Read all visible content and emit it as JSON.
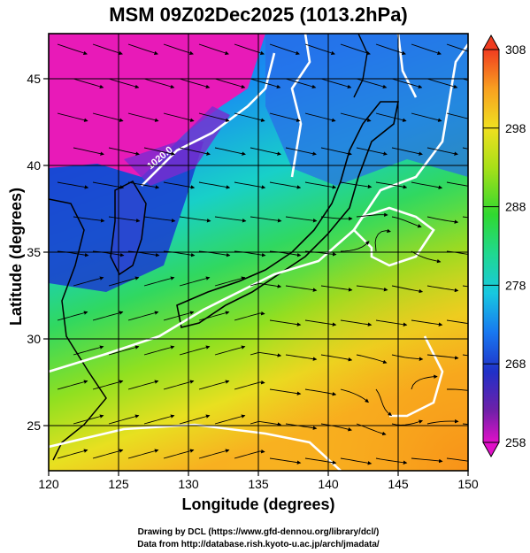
{
  "title": "MSM 09Z02Dec2025 (1013.2hPa)",
  "chart_data": {
    "type": "heatmap",
    "xlabel": "Longitude (degrees)",
    "ylabel": "Latitude  (degrees)",
    "xlim": [
      120,
      150
    ],
    "ylim": [
      22.4,
      47.6
    ],
    "x_ticks": [
      "120",
      "125",
      "130",
      "135",
      "140",
      "145",
      "150"
    ],
    "y_ticks": [
      "25",
      "30",
      "35",
      "40",
      "45"
    ],
    "grid": true,
    "colorbar": {
      "range": [
        258,
        308
      ],
      "ticks": [
        "308",
        "298",
        "288",
        "278",
        "268",
        "258"
      ],
      "placement": "right"
    },
    "contour_labels": [
      "1020.0"
    ],
    "contour_color": "#ffffff"
  },
  "credits": {
    "line1": "Drawing by DCL (https://www.gfd-dennou.org/library/dcl/)",
    "line2": "Data from http://database.rish.kyoto-u.ac.jp/arch/jmadata/"
  }
}
